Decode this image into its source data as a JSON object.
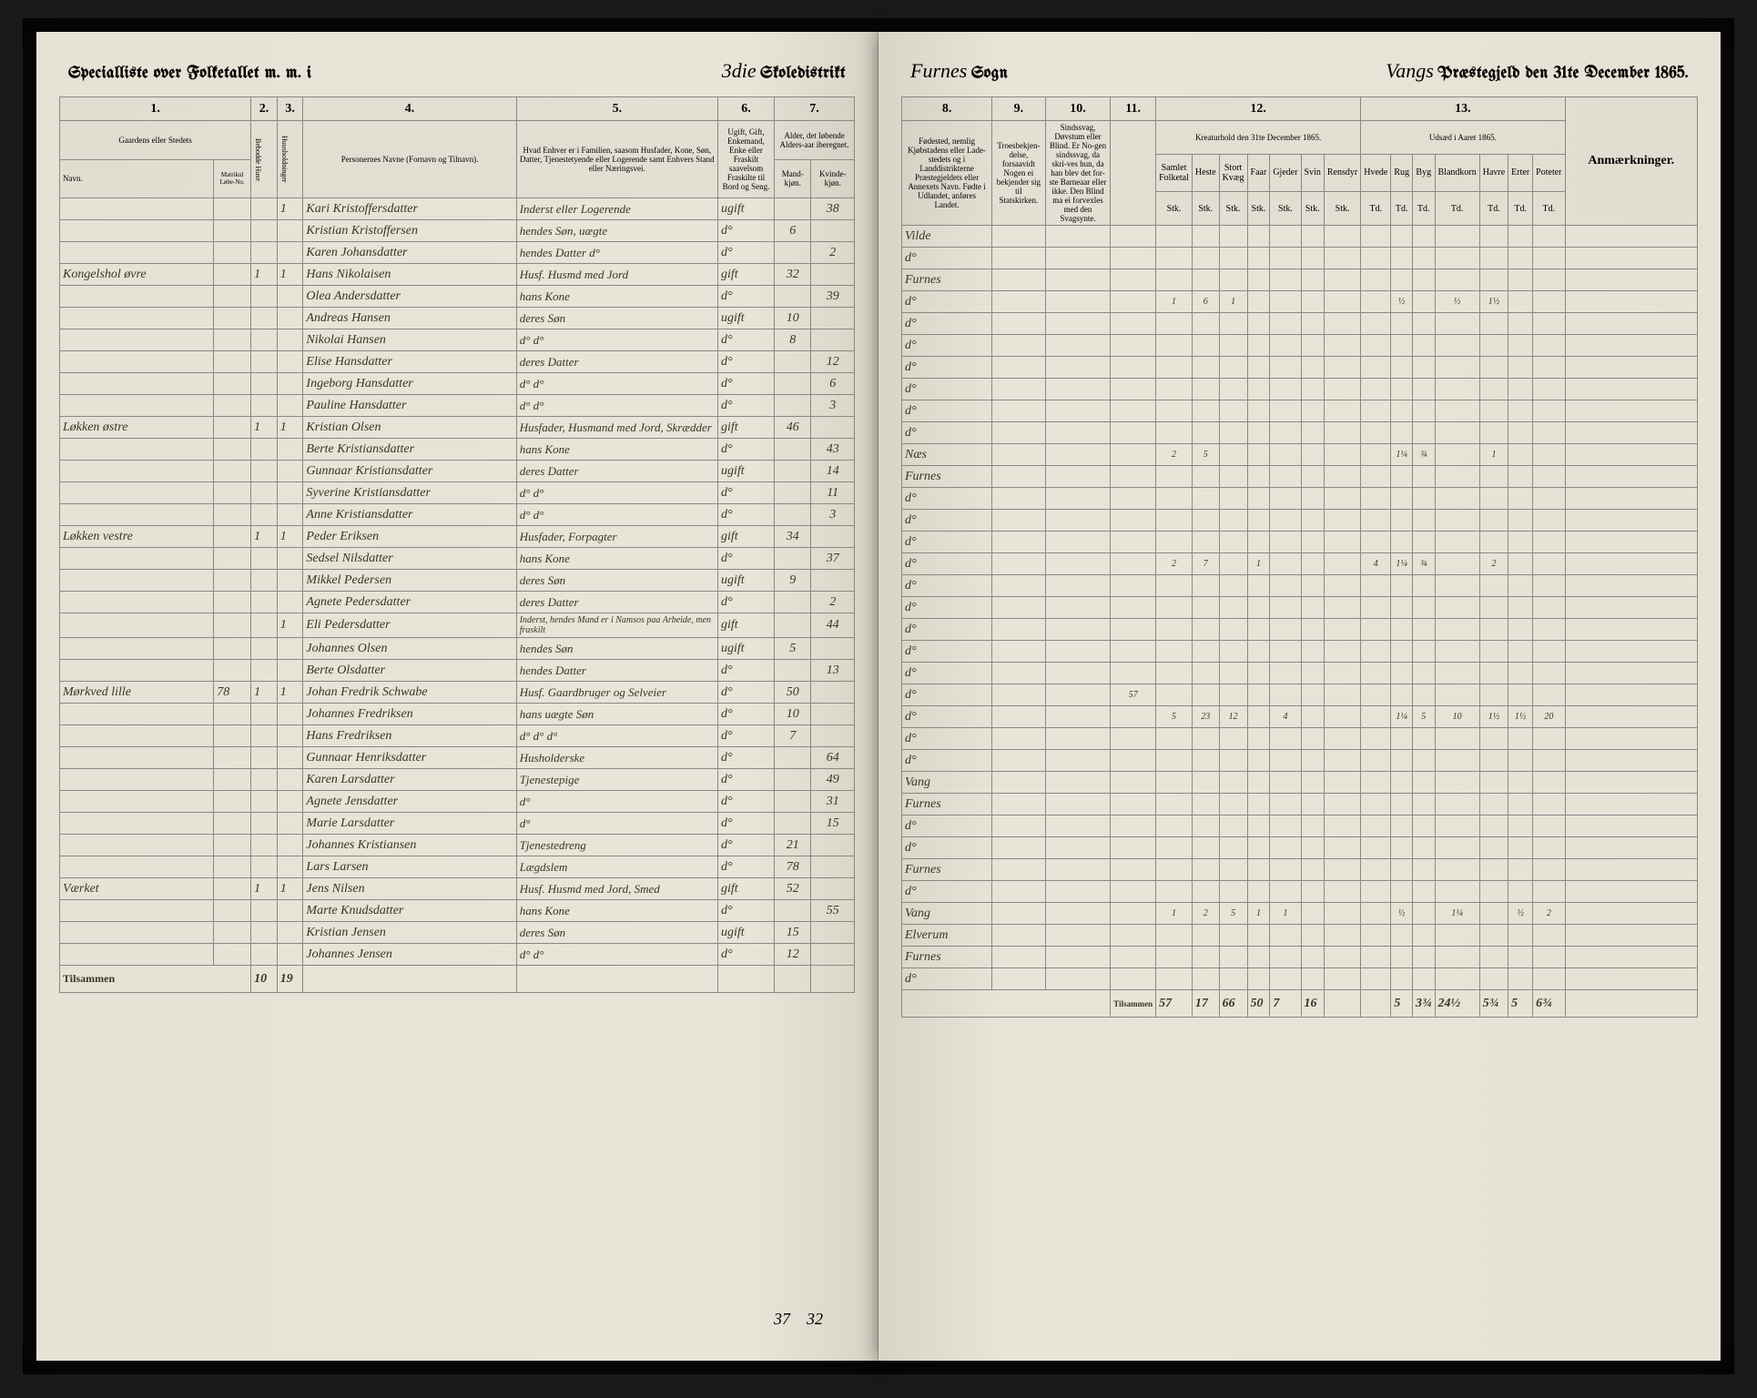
{
  "header_left": {
    "title": "Specialliste over Folketallet m. m. i",
    "district_num": "3die",
    "district_label": "Skoledistrikt"
  },
  "header_right": {
    "sogn": "Furnes",
    "sogn_label": "Sogn",
    "praeste": "Vangs",
    "praeste_label": "Præstegjeld den 31te December 1865."
  },
  "left_cols": {
    "c1": "1.",
    "c2": "2.",
    "c3": "3.",
    "c4": "4.",
    "c5": "5.",
    "c6": "6.",
    "c7": "7.",
    "h1": "Gaardens eller Stedets",
    "h1b": "Navn.",
    "h_matr": "Matrikul Løbe-No.",
    "h2": "Bebodde Huse",
    "h3": "Huusholdninger",
    "h4": "Personernes Navne (Fornavn og Tilnavn).",
    "h5": "Hvad Enhver er i Familien, saasom Husfader, Kone, Søn, Datter, Tjenestetyende eller Logerende samt Enhvers Stand eller Næringsvei.",
    "h6": "Ugift, Gift, Enkemand, Enke eller Fraskilt saavelsom Fraskilte til Bord og Seng.",
    "h7": "Alder, det løbende Alders-aar iberegnet.",
    "h7a": "Mand-kjøn.",
    "h7b": "Kvinde-kjøn."
  },
  "right_cols": {
    "c8": "8.",
    "c9": "9.",
    "c10": "10.",
    "c11": "11.",
    "c12": "12.",
    "c13": "13.",
    "h8": "Fødested, nemlig Kjøbstadens eller Lade-stedets og i Landdistrikterne Præstegjeldets eller Annexets Navn. Fødte i Udlandet, anføres Landet.",
    "h9": "Troesbekjen-delse, forsaavidt Nogen ei bekjender sig til Statskirken.",
    "h10": "Sindssvag, Døvstum eller Blind. Er No-gen sindssvag, da skri-ves hun, da han blev det for-ste Barneaar eller ikke. Den Blind ma ei forvexles med den Svagsynte.",
    "h11": "",
    "h12": "Kreaturhold den 31te December 1865.",
    "h13": "Udsæd i Aaret 1865.",
    "h_remarks": "Anmærkninger.",
    "k1": "Samlet Folketal",
    "k2": "Heste",
    "k3": "Stort Kvæg",
    "k4": "Faar",
    "k5": "Gjeder",
    "k6": "Svin",
    "k7": "Rensdyr",
    "u1": "Hvede",
    "u2": "Rug",
    "u3": "Byg",
    "u4": "Blandkorn",
    "u5": "Havre",
    "u6": "Erter",
    "u7": "Poteter",
    "unit": "Stk.",
    "unit2": "Td."
  },
  "rows": [
    {
      "place": "",
      "m": "",
      "h": "",
      "hh": "1",
      "name": "Kari Kristoffersdatter",
      "status": "Inderst eller Logerende",
      "mar": "ugift",
      "ageM": "",
      "ageF": "38",
      "birth": "Vilde"
    },
    {
      "place": "",
      "m": "",
      "h": "",
      "hh": "",
      "name": "Kristian Kristoffersen",
      "status": "hendes Søn, uægte",
      "mar": "d°",
      "ageM": "6",
      "ageF": "",
      "birth": "d°"
    },
    {
      "place": "",
      "m": "",
      "h": "",
      "hh": "",
      "name": "Karen Johansdatter",
      "status": "hendes Datter d°",
      "mar": "d°",
      "ageM": "",
      "ageF": "2",
      "birth": "Furnes"
    },
    {
      "place": "Kongelshol øvre",
      "m": "",
      "h": "1",
      "hh": "1",
      "name": "Hans Nikolaisen",
      "status": "Husf. Husmd med Jord",
      "mar": "gift",
      "ageM": "32",
      "ageF": "",
      "birth": "d°",
      "k": [
        "",
        "1",
        "6",
        "1",
        "",
        "",
        "",
        "",
        "",
        "½",
        "",
        "½",
        "1½"
      ]
    },
    {
      "place": "",
      "m": "",
      "h": "",
      "hh": "",
      "name": "Olea Andersdatter",
      "status": "hans Kone",
      "mar": "d°",
      "ageM": "",
      "ageF": "39",
      "birth": "d°"
    },
    {
      "place": "",
      "m": "",
      "h": "",
      "hh": "",
      "name": "Andreas Hansen",
      "status": "deres Søn",
      "mar": "ugift",
      "ageM": "10",
      "ageF": "",
      "birth": "d°"
    },
    {
      "place": "",
      "m": "",
      "h": "",
      "hh": "",
      "name": "Nikolai Hansen",
      "status": "d°    d°",
      "mar": "d°",
      "ageM": "8",
      "ageF": "",
      "birth": "d°"
    },
    {
      "place": "",
      "m": "",
      "h": "",
      "hh": "",
      "name": "Elise Hansdatter",
      "status": "deres Datter",
      "mar": "d°",
      "ageM": "",
      "ageF": "12",
      "birth": "d°"
    },
    {
      "place": "",
      "m": "",
      "h": "",
      "hh": "",
      "name": "Ingeborg Hansdatter",
      "status": "d°    d°",
      "mar": "d°",
      "ageM": "",
      "ageF": "6",
      "birth": "d°"
    },
    {
      "place": "",
      "m": "",
      "h": "",
      "hh": "",
      "name": "Pauline Hansdatter",
      "status": "d°    d°",
      "mar": "d°",
      "ageM": "",
      "ageF": "3",
      "birth": "d°"
    },
    {
      "place": "Løkken østre",
      "m": "",
      "h": "1",
      "hh": "1",
      "name": "Kristian Olsen",
      "status": "Husfader, Husmand med Jord, Skrædder",
      "mar": "gift",
      "ageM": "46",
      "ageF": "",
      "birth": "Næs",
      "k": [
        "",
        "2",
        "5",
        "",
        "",
        "",
        "",
        "",
        "",
        "1¼",
        "¾",
        "",
        "1"
      ]
    },
    {
      "place": "",
      "m": "",
      "h": "",
      "hh": "",
      "name": "Berte Kristiansdatter",
      "status": "hans Kone",
      "mar": "d°",
      "ageM": "",
      "ageF": "43",
      "birth": "Furnes"
    },
    {
      "place": "",
      "m": "",
      "h": "",
      "hh": "",
      "name": "Gunnaar Kristiansdatter",
      "status": "deres Datter",
      "mar": "ugift",
      "ageM": "",
      "ageF": "14",
      "birth": "d°"
    },
    {
      "place": "",
      "m": "",
      "h": "",
      "hh": "",
      "name": "Syverine Kristiansdatter",
      "status": "d°    d°",
      "mar": "d°",
      "ageM": "",
      "ageF": "11",
      "birth": "d°"
    },
    {
      "place": "",
      "m": "",
      "h": "",
      "hh": "",
      "name": "Anne Kristiansdatter",
      "status": "d°    d°",
      "mar": "d°",
      "ageM": "",
      "ageF": "3",
      "birth": "d°"
    },
    {
      "place": "Løkken vestre",
      "m": "",
      "h": "1",
      "hh": "1",
      "name": "Peder Eriksen",
      "status": "Husfader, Forpagter",
      "mar": "gift",
      "ageM": "34",
      "ageF": "",
      "birth": "d°",
      "k": [
        "",
        "2",
        "7",
        "",
        "1",
        "",
        "",
        "",
        "4",
        "1¼",
        "¾",
        "",
        "2"
      ]
    },
    {
      "place": "",
      "m": "",
      "h": "",
      "hh": "",
      "name": "Sedsel Nilsdatter",
      "status": "hans Kone",
      "mar": "d°",
      "ageM": "",
      "ageF": "37",
      "birth": "d°"
    },
    {
      "place": "",
      "m": "",
      "h": "",
      "hh": "",
      "name": "Mikkel Pedersen",
      "status": "deres Søn",
      "mar": "ugift",
      "ageM": "9",
      "ageF": "",
      "birth": "d°"
    },
    {
      "place": "",
      "m": "",
      "h": "",
      "hh": "",
      "name": "Agnete Pedersdatter",
      "status": "deres Datter",
      "mar": "d°",
      "ageM": "",
      "ageF": "2",
      "birth": "d°"
    },
    {
      "place": "",
      "m": "",
      "h": "",
      "hh": "1",
      "name": "Eli Pedersdatter",
      "status": "Inderst, hendes Mand er i Namsos paa Arbeide, men fraskilt",
      "mar": "gift",
      "ageM": "",
      "ageF": "44",
      "birth": "d°"
    },
    {
      "place": "",
      "m": "",
      "h": "",
      "hh": "",
      "name": "Johannes Olsen",
      "status": "hendes Søn",
      "mar": "ugift",
      "ageM": "5",
      "ageF": "",
      "birth": "d°"
    },
    {
      "place": "",
      "m": "",
      "h": "",
      "hh": "",
      "name": "Berte Olsdatter",
      "status": "hendes Datter",
      "mar": "d°",
      "ageM": "",
      "ageF": "13",
      "birth": "d°",
      "k": [
        "57"
      ]
    },
    {
      "place": "Mørkved lille",
      "m": "78",
      "h": "1",
      "hh": "1",
      "name": "Johan Fredrik Schwabe",
      "status": "Husf. Gaardbruger og Selveier",
      "mar": "d°",
      "ageM": "50",
      "ageF": "",
      "birth": "d°",
      "k": [
        "",
        "5",
        "23",
        "12",
        "",
        "4",
        "",
        "",
        "",
        "1¼",
        "5",
        "10",
        "1½",
        "1½",
        "20"
      ]
    },
    {
      "place": "",
      "m": "",
      "h": "",
      "hh": "",
      "name": "Johannes Fredriksen",
      "status": "hans uægte Søn",
      "mar": "d°",
      "ageM": "10",
      "ageF": "",
      "birth": "d°"
    },
    {
      "place": "",
      "m": "",
      "h": "",
      "hh": "",
      "name": "Hans Fredriksen",
      "status": "d°    d°    d°",
      "mar": "d°",
      "ageM": "7",
      "ageF": "",
      "birth": "d°"
    },
    {
      "place": "",
      "m": "",
      "h": "",
      "hh": "",
      "name": "Gunnaar Henriksdatter",
      "status": "Husholderske",
      "mar": "d°",
      "ageM": "",
      "ageF": "64",
      "birth": "Vang"
    },
    {
      "place": "",
      "m": "",
      "h": "",
      "hh": "",
      "name": "Karen Larsdatter",
      "status": "Tjenestepige",
      "mar": "d°",
      "ageM": "",
      "ageF": "49",
      "birth": "Furnes"
    },
    {
      "place": "",
      "m": "",
      "h": "",
      "hh": "",
      "name": "Agnete Jensdatter",
      "status": "d°",
      "mar": "d°",
      "ageM": "",
      "ageF": "31",
      "birth": "d°"
    },
    {
      "place": "",
      "m": "",
      "h": "",
      "hh": "",
      "name": "Marie Larsdatter",
      "status": "d°",
      "mar": "d°",
      "ageM": "",
      "ageF": "15",
      "birth": "d°"
    },
    {
      "place": "",
      "m": "",
      "h": "",
      "hh": "",
      "name": "Johannes Kristiansen",
      "status": "Tjenestedreng",
      "mar": "d°",
      "ageM": "21",
      "ageF": "",
      "birth": "Furnes"
    },
    {
      "place": "",
      "m": "",
      "h": "",
      "hh": "",
      "name": "Lars Larsen",
      "status": "Lægdslem",
      "mar": "d°",
      "ageM": "78",
      "ageF": "",
      "birth": "d°"
    },
    {
      "place": "Værket",
      "m": "",
      "h": "1",
      "hh": "1",
      "name": "Jens Nilsen",
      "status": "Husf. Husmd med Jord, Smed",
      "mar": "gift",
      "ageM": "52",
      "ageF": "",
      "birth": "Vang",
      "k": [
        "",
        "1",
        "2",
        "5",
        "1",
        "1",
        "",
        "",
        "",
        "½",
        "",
        "1¼",
        "",
        "½",
        "2"
      ]
    },
    {
      "place": "",
      "m": "",
      "h": "",
      "hh": "",
      "name": "Marte Knudsdatter",
      "status": "hans Kone",
      "mar": "d°",
      "ageM": "",
      "ageF": "55",
      "birth": "Elverum"
    },
    {
      "place": "",
      "m": "",
      "h": "",
      "hh": "",
      "name": "Kristian Jensen",
      "status": "deres Søn",
      "mar": "ugift",
      "ageM": "15",
      "ageF": "",
      "birth": "Furnes"
    },
    {
      "place": "",
      "m": "",
      "h": "",
      "hh": "",
      "name": "Johannes Jensen",
      "status": "d°    d°",
      "mar": "d°",
      "ageM": "12",
      "ageF": "",
      "birth": "d°"
    }
  ],
  "footer_left": {
    "label": "Tilsammen",
    "h": "10",
    "hh": "19"
  },
  "footer_right": {
    "label": "Tilsammen",
    "vals": [
      "57",
      "17",
      "66",
      "50",
      "7",
      "16",
      "",
      "",
      "5",
      "3¾",
      "24½",
      "5¾",
      "5",
      "6¾"
    ]
  },
  "page_numbers": {
    "left_a": "37",
    "left_b": "32"
  },
  "colors": {
    "paper": "#e8e4d8",
    "ink": "#3a3528",
    "rule": "#888888",
    "bg": "#1a1a1a"
  }
}
